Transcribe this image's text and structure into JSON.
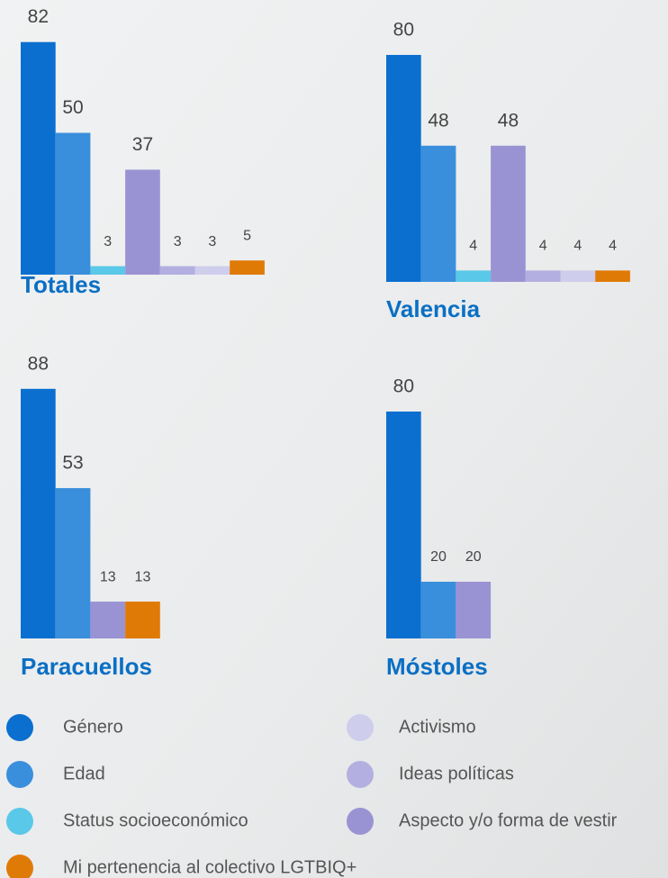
{
  "chart_data": [
    {
      "type": "bar",
      "title": "Totales",
      "series": [
        {
          "name": "Género",
          "color": "#0b6fd0",
          "values": [
            82
          ]
        },
        {
          "name": "Edad",
          "color": "#3a8fdc",
          "values": [
            50
          ]
        },
        {
          "name": "Status socioeconómico",
          "color": "#5ac8e8",
          "values": [
            3
          ]
        },
        {
          "name": "Aspecto y/o forma de vestir",
          "color": "#9a93d3",
          "values": [
            37
          ]
        },
        {
          "name": "Ideas políticas",
          "color": "#b3afe0",
          "values": [
            3
          ]
        },
        {
          "name": "Activismo",
          "color": "#cfcdec",
          "values": [
            3
          ]
        },
        {
          "name": "Mi pertenencia al colectivo LGTBIQ+",
          "color": "#e07a06",
          "values": [
            5
          ]
        }
      ]
    },
    {
      "type": "bar",
      "title": "Valencia",
      "series": [
        {
          "name": "Género",
          "color": "#0b6fd0",
          "values": [
            80
          ]
        },
        {
          "name": "Edad",
          "color": "#3a8fdc",
          "values": [
            48
          ]
        },
        {
          "name": "Status socioeconómico",
          "color": "#5ac8e8",
          "values": [
            4
          ]
        },
        {
          "name": "Aspecto y/o forma de vestir",
          "color": "#9a93d3",
          "values": [
            48
          ]
        },
        {
          "name": "Ideas políticas",
          "color": "#b3afe0",
          "values": [
            4
          ]
        },
        {
          "name": "Activismo",
          "color": "#cfcdec",
          "values": [
            4
          ]
        },
        {
          "name": "Mi pertenencia al colectivo LGTBIQ+",
          "color": "#e07a06",
          "values": [
            4
          ]
        }
      ]
    },
    {
      "type": "bar",
      "title": "Paracuellos",
      "series": [
        {
          "name": "Género",
          "color": "#0b6fd0",
          "values": [
            88
          ]
        },
        {
          "name": "Edad",
          "color": "#3a8fdc",
          "values": [
            53
          ]
        },
        {
          "name": "Aspecto y/o forma de vestir",
          "color": "#9a93d3",
          "values": [
            13
          ]
        },
        {
          "name": "Mi pertenencia al colectivo LGTBIQ+",
          "color": "#e07a06",
          "values": [
            13
          ]
        }
      ]
    },
    {
      "type": "bar",
      "title": "Móstoles",
      "series": [
        {
          "name": "Género",
          "color": "#0b6fd0",
          "values": [
            80
          ]
        },
        {
          "name": "Edad",
          "color": "#3a8fdc",
          "values": [
            20
          ]
        },
        {
          "name": "Aspecto y/o forma de vestir",
          "color": "#9a93d3",
          "values": [
            20
          ]
        }
      ]
    }
  ]
}
